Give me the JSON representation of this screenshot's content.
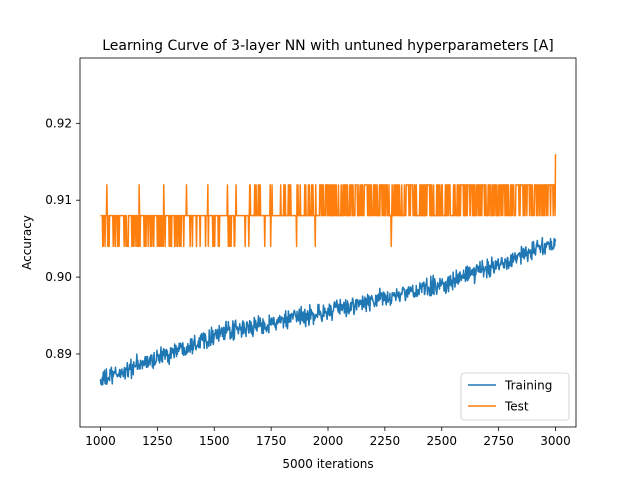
{
  "chart_data": {
    "type": "line",
    "title": "Learning Curve of 3-layer NN with untuned hyperparameters [A]",
    "xlabel": "5000 iterations",
    "ylabel": "Accuracy",
    "xlim": [
      910,
      3090
    ],
    "ylim": [
      0.8805,
      0.9285
    ],
    "x_ticks": [
      1000,
      1250,
      1500,
      1750,
      2000,
      2250,
      2500,
      2750,
      3000
    ],
    "y_ticks": [
      0.89,
      0.9,
      0.91,
      0.92
    ],
    "y_tick_labels": [
      "0.89",
      "0.90",
      "0.91",
      "0.92"
    ],
    "grid": false,
    "legend_position": "lower-right",
    "series": [
      {
        "name": "Training",
        "color": "#1f77b4",
        "x_range": [
          1000,
          3000
        ],
        "trend_points": [
          [
            1000,
            0.8865
          ],
          [
            1500,
            0.8925
          ],
          [
            2000,
            0.8955
          ],
          [
            2500,
            0.899
          ],
          [
            3000,
            0.9045
          ]
        ],
        "noise_amplitude": 0.0018
      },
      {
        "name": "Test",
        "color": "#ff7f0e",
        "x_range": [
          1000,
          3000
        ],
        "trend_points": [
          [
            1000,
            0.9065
          ],
          [
            1500,
            0.9075
          ],
          [
            2000,
            0.9095
          ],
          [
            2500,
            0.91
          ],
          [
            3000,
            0.911
          ]
        ],
        "noise_amplitude": 0.0045
      }
    ]
  }
}
